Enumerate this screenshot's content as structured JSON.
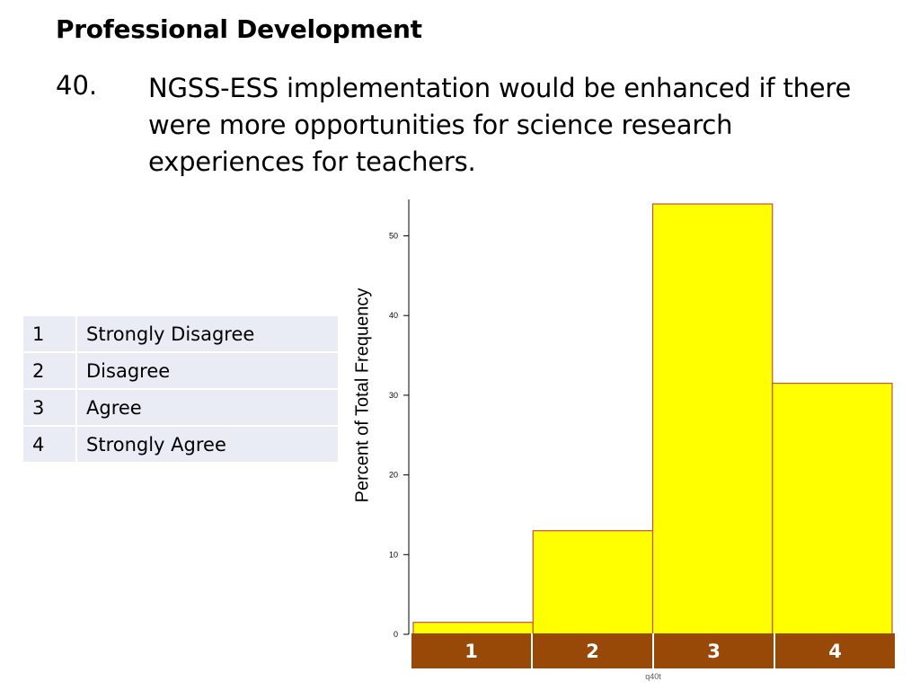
{
  "header": {
    "title": "Professional Development",
    "question_number": "40.",
    "question_text": "NGSS-ESS implementation would be enhanced if there were more opportunities for science research experiences for teachers."
  },
  "scale_legend": [
    {
      "num": "1",
      "label": "Strongly Disagree"
    },
    {
      "num": "2",
      "label": "Disagree"
    },
    {
      "num": "3",
      "label": "Agree"
    },
    {
      "num": "4",
      "label": "Strongly Agree"
    }
  ],
  "chart_data": {
    "type": "bar",
    "categories": [
      "1",
      "2",
      "3",
      "4"
    ],
    "values": [
      1.5,
      13,
      54,
      31.5
    ],
    "title": "",
    "xlabel": "q40t",
    "ylabel": "Percent of Total Frequency",
    "ylim": [
      0,
      54
    ],
    "yticks": [
      0,
      10,
      20,
      30,
      40,
      50
    ],
    "bar_color": "#ffff00",
    "bar_edge_color": "#c0504d",
    "category_strip_color": "#984807",
    "grid": false,
    "legend": "none"
  }
}
